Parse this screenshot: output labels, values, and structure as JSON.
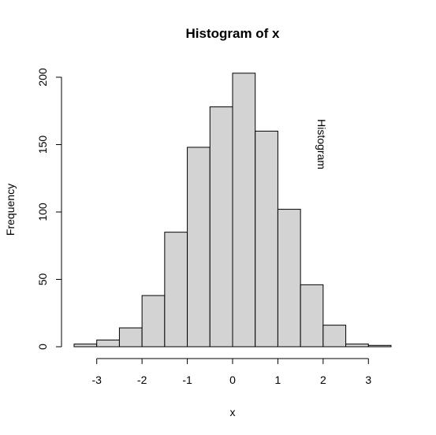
{
  "chart_data": {
    "type": "bar",
    "title": "Histogram of x",
    "xlabel": "x",
    "ylabel": "Frequency",
    "annotation": "Histogram",
    "bin_edges": [
      -3.5,
      -3.0,
      -2.5,
      -2.0,
      -1.5,
      -1.0,
      -0.5,
      0.0,
      0.5,
      1.0,
      1.5,
      2.0,
      2.5,
      3.0,
      3.5
    ],
    "values": [
      2,
      5,
      14,
      38,
      85,
      148,
      178,
      203,
      160,
      102,
      46,
      16,
      2,
      1
    ],
    "x_ticks": [
      -3,
      -2,
      -1,
      0,
      1,
      2,
      3
    ],
    "x_tick_labels": [
      "-3",
      "-2",
      "-1",
      "0",
      "1",
      "2",
      "3"
    ],
    "y_ticks": [
      0,
      50,
      100,
      150,
      200
    ],
    "y_tick_labels": [
      "0",
      "50",
      "100",
      "150",
      "200"
    ],
    "xlim": [
      -3.5,
      3.5
    ],
    "ylim": [
      0,
      200
    ],
    "grid": false,
    "legend": "none",
    "bar_fill": "#d3d3d3",
    "bar_stroke": "#000000"
  }
}
